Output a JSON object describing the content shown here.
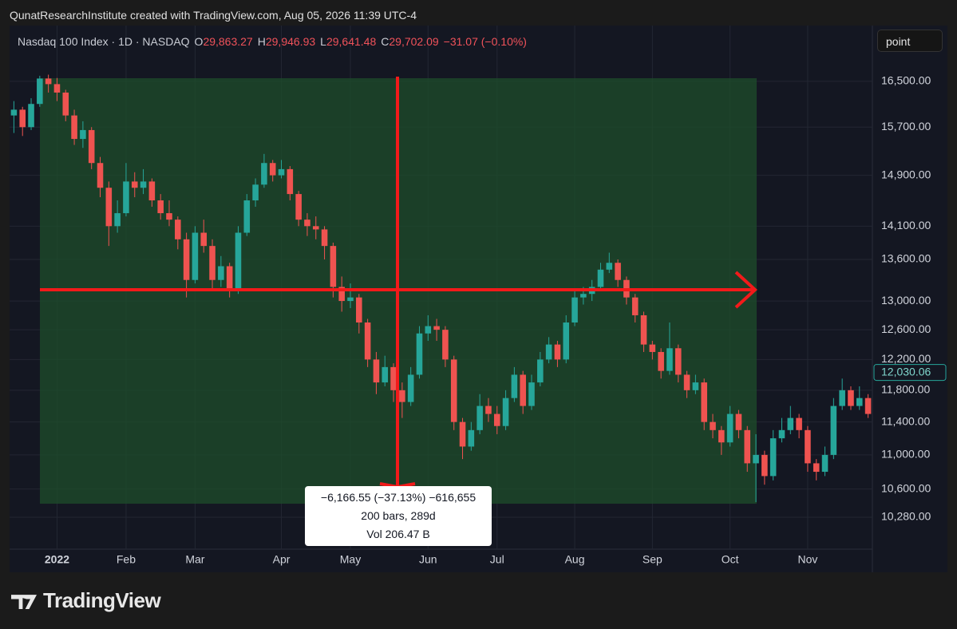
{
  "header": {
    "credit": "QunatResearchInstitute created with TradingView.com, Aug 05, 2026 11:39 UTC-4",
    "button": "point"
  },
  "legend": {
    "symbol": "Nasdaq 100 Index · 1D · NASDAQ",
    "ohlc": [
      {
        "key": "O",
        "value": "29,863.27"
      },
      {
        "key": "H",
        "value": "29,946.93"
      },
      {
        "key": "L",
        "value": "29,641.48"
      },
      {
        "key": "C",
        "value": "29,702.09"
      }
    ],
    "change": "−31.07 (−0.10%)"
  },
  "measure": {
    "line1": "−6,166.55 (−37.13%) −616,655",
    "line2": "200 bars, 289d",
    "line3": "Vol 206.47 B"
  },
  "footer": {
    "brand": "TradingView"
  },
  "chart_data": {
    "type": "candlestick",
    "log_scale": true,
    "grid": true,
    "up_color": "#26a69a",
    "down_color": "#ef5350",
    "last_price": {
      "value": 12030.06,
      "label": "12,030.06"
    },
    "ylim": [
      9930,
      17530
    ],
    "yticks": [
      {
        "value": 10280,
        "label": "10,280.00"
      },
      {
        "value": 10600,
        "label": "10,600.00"
      },
      {
        "value": 11000,
        "label": "11,000.00"
      },
      {
        "value": 11400,
        "label": "11,400.00"
      },
      {
        "value": 11800,
        "label": "11,800.00"
      },
      {
        "value": 12200,
        "label": "12,200.00"
      },
      {
        "value": 12600,
        "label": "12,600.00"
      },
      {
        "value": 13000,
        "label": "13,000.00"
      },
      {
        "value": 13600,
        "label": "13,600.00"
      },
      {
        "value": 14100,
        "label": "14,100.00"
      },
      {
        "value": 14900,
        "label": "14,900.00"
      },
      {
        "value": 15700,
        "label": "15,700.00"
      },
      {
        "value": 16500,
        "label": "16,500.00"
      }
    ],
    "categories": [
      null,
      null,
      null,
      null,
      null,
      "2022",
      null,
      null,
      null,
      null,
      null,
      null,
      null,
      "Feb",
      null,
      null,
      null,
      null,
      null,
      null,
      null,
      "Mar",
      null,
      null,
      null,
      null,
      null,
      null,
      null,
      null,
      null,
      "Apr",
      null,
      null,
      null,
      null,
      null,
      null,
      null,
      "May",
      null,
      null,
      null,
      null,
      null,
      null,
      null,
      null,
      "Jun",
      null,
      null,
      null,
      null,
      null,
      null,
      null,
      "Jul",
      null,
      null,
      null,
      null,
      null,
      null,
      null,
      null,
      "Aug",
      null,
      null,
      null,
      null,
      null,
      null,
      null,
      null,
      "Sep",
      null,
      null,
      null,
      null,
      null,
      null,
      null,
      null,
      "Oct",
      null,
      null,
      null,
      null,
      null,
      null,
      null,
      null,
      "Nov",
      null,
      null,
      null,
      null,
      null,
      null,
      null
    ],
    "ohlc": [
      [
        15900,
        16150,
        15600,
        16000
      ],
      [
        16000,
        16050,
        15550,
        15700
      ],
      [
        15700,
        16200,
        15650,
        16100
      ],
      [
        16100,
        16600,
        16050,
        16550
      ],
      [
        16550,
        16620,
        16300,
        16450
      ],
      [
        16450,
        16560,
        16150,
        16300
      ],
      [
        16300,
        16350,
        15800,
        15900
      ],
      [
        15900,
        16000,
        15400,
        15500
      ],
      [
        15500,
        15800,
        15350,
        15650
      ],
      [
        15650,
        15700,
        15000,
        15100
      ],
      [
        15100,
        15200,
        14550,
        14700
      ],
      [
        14700,
        14800,
        13800,
        14100
      ],
      [
        14100,
        14500,
        14000,
        14300
      ],
      [
        14300,
        15100,
        14250,
        14800
      ],
      [
        14800,
        14950,
        14550,
        14700
      ],
      [
        14700,
        15000,
        14600,
        14800
      ],
      [
        14800,
        14850,
        14400,
        14500
      ],
      [
        14500,
        14600,
        14200,
        14300
      ],
      [
        14300,
        14500,
        14100,
        14200
      ],
      [
        14200,
        14250,
        13750,
        13900
      ],
      [
        13900,
        14000,
        13050,
        13300
      ],
      [
        13300,
        14100,
        13250,
        14000
      ],
      [
        14000,
        14200,
        13700,
        13800
      ],
      [
        13800,
        13900,
        13150,
        13300
      ],
      [
        13300,
        13650,
        13200,
        13500
      ],
      [
        13500,
        13550,
        13050,
        13150
      ],
      [
        13150,
        14100,
        13100,
        14000
      ],
      [
        14000,
        14600,
        13950,
        14500
      ],
      [
        14500,
        14850,
        14400,
        14750
      ],
      [
        14750,
        15250,
        14700,
        15100
      ],
      [
        15100,
        15150,
        14800,
        14900
      ],
      [
        14900,
        15150,
        14850,
        15000
      ],
      [
        15000,
        15050,
        14500,
        14600
      ],
      [
        14600,
        14650,
        14100,
        14200
      ],
      [
        14200,
        14300,
        13950,
        14100
      ],
      [
        14100,
        14250,
        13900,
        14050
      ],
      [
        14050,
        14100,
        13600,
        13800
      ],
      [
        13800,
        13850,
        13050,
        13200
      ],
      [
        13200,
        13350,
        12850,
        13000
      ],
      [
        13000,
        13250,
        12900,
        13050
      ],
      [
        13050,
        13100,
        12550,
        12700
      ],
      [
        12700,
        12750,
        12100,
        12200
      ],
      [
        12200,
        12300,
        11750,
        11900
      ],
      [
        11900,
        12250,
        11850,
        12100
      ],
      [
        12100,
        12150,
        11650,
        11800
      ],
      [
        11800,
        11900,
        11450,
        11650
      ],
      [
        11650,
        12100,
        11600,
        12000
      ],
      [
        12000,
        12650,
        11950,
        12550
      ],
      [
        12550,
        12800,
        12450,
        12650
      ],
      [
        12650,
        12750,
        12450,
        12600
      ],
      [
        12600,
        12650,
        12100,
        12200
      ],
      [
        12200,
        12250,
        11300,
        11400
      ],
      [
        11400,
        11450,
        10950,
        11100
      ],
      [
        11100,
        11400,
        11050,
        11300
      ],
      [
        11300,
        11750,
        11250,
        11600
      ],
      [
        11600,
        11700,
        11400,
        11500
      ],
      [
        11500,
        11600,
        11250,
        11350
      ],
      [
        11350,
        11800,
        11300,
        11700
      ],
      [
        11700,
        12100,
        11650,
        12000
      ],
      [
        12000,
        12050,
        11500,
        11600
      ],
      [
        11600,
        12000,
        11550,
        11900
      ],
      [
        11900,
        12300,
        11850,
        12200
      ],
      [
        12200,
        12500,
        12150,
        12400
      ],
      [
        12400,
        12450,
        12100,
        12200
      ],
      [
        12200,
        12800,
        12150,
        12700
      ],
      [
        12700,
        13150,
        12650,
        13050
      ],
      [
        13050,
        13200,
        12950,
        13100
      ],
      [
        13100,
        13300,
        13000,
        13200
      ],
      [
        13200,
        13550,
        13150,
        13450
      ],
      [
        13450,
        13700,
        13400,
        13550
      ],
      [
        13550,
        13600,
        13200,
        13300
      ],
      [
        13300,
        13350,
        12950,
        13050
      ],
      [
        13050,
        13100,
        12700,
        12800
      ],
      [
        12800,
        12850,
        12300,
        12400
      ],
      [
        12400,
        12450,
        12200,
        12300
      ],
      [
        12300,
        12350,
        11950,
        12050
      ],
      [
        12050,
        12700,
        12000,
        12350
      ],
      [
        12350,
        12400,
        11900,
        12000
      ],
      [
        12000,
        12050,
        11700,
        11800
      ],
      [
        11800,
        12000,
        11750,
        11900
      ],
      [
        11900,
        11950,
        11300,
        11400
      ],
      [
        11400,
        11500,
        11200,
        11300
      ],
      [
        11300,
        11350,
        11000,
        11150
      ],
      [
        11150,
        11600,
        11100,
        11500
      ],
      [
        11500,
        11550,
        11200,
        11300
      ],
      [
        11300,
        11350,
        10800,
        10900
      ],
      [
        10900,
        11250,
        10450,
        11000
      ],
      [
        11000,
        11050,
        10650,
        10750
      ],
      [
        10750,
        11300,
        10700,
        11200
      ],
      [
        11200,
        11450,
        11150,
        11300
      ],
      [
        11300,
        11600,
        11250,
        11450
      ],
      [
        11450,
        11500,
        11200,
        11300
      ],
      [
        11300,
        11350,
        10800,
        10900
      ],
      [
        10900,
        10950,
        10700,
        10800
      ],
      [
        10800,
        11100,
        10750,
        11000
      ],
      [
        11000,
        11700,
        10950,
        11600
      ],
      [
        11600,
        11950,
        11550,
        11800
      ],
      [
        11800,
        11850,
        11550,
        11600
      ],
      [
        11600,
        11850,
        11550,
        11700
      ],
      [
        11700,
        11750,
        11450,
        11500
      ]
    ]
  }
}
